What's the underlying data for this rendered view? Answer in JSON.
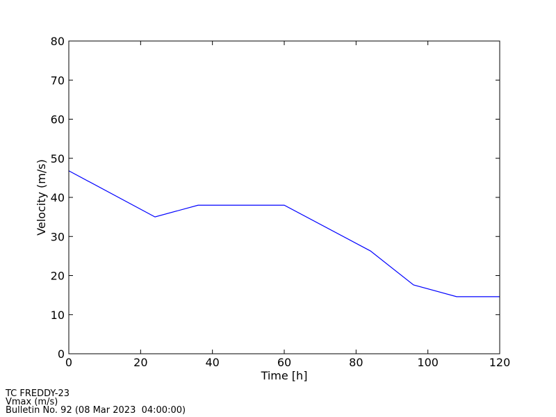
{
  "chart_data": {
    "type": "line",
    "xlabel": "Time [h]",
    "ylabel": "Velocity (m/s)",
    "x": [
      0,
      24,
      36,
      60,
      84,
      96,
      108,
      120
    ],
    "series": [
      {
        "name": "Vmax",
        "color": "#0000ff",
        "values": [
          46.8,
          35.0,
          38.0,
          38.0,
          26.3,
          17.6,
          14.6,
          14.6
        ]
      }
    ],
    "xlim": [
      0,
      120
    ],
    "ylim": [
      0,
      80
    ],
    "xticks": [
      0,
      20,
      40,
      60,
      80,
      100,
      120
    ],
    "yticks": [
      0,
      10,
      20,
      30,
      40,
      50,
      60,
      70,
      80
    ],
    "grid": false,
    "annotations": [
      "TC FREDDY-23",
      "Vmax (m/s)",
      "Bulletin No. 92 (08 Mar 2023  04:00:00)"
    ]
  }
}
